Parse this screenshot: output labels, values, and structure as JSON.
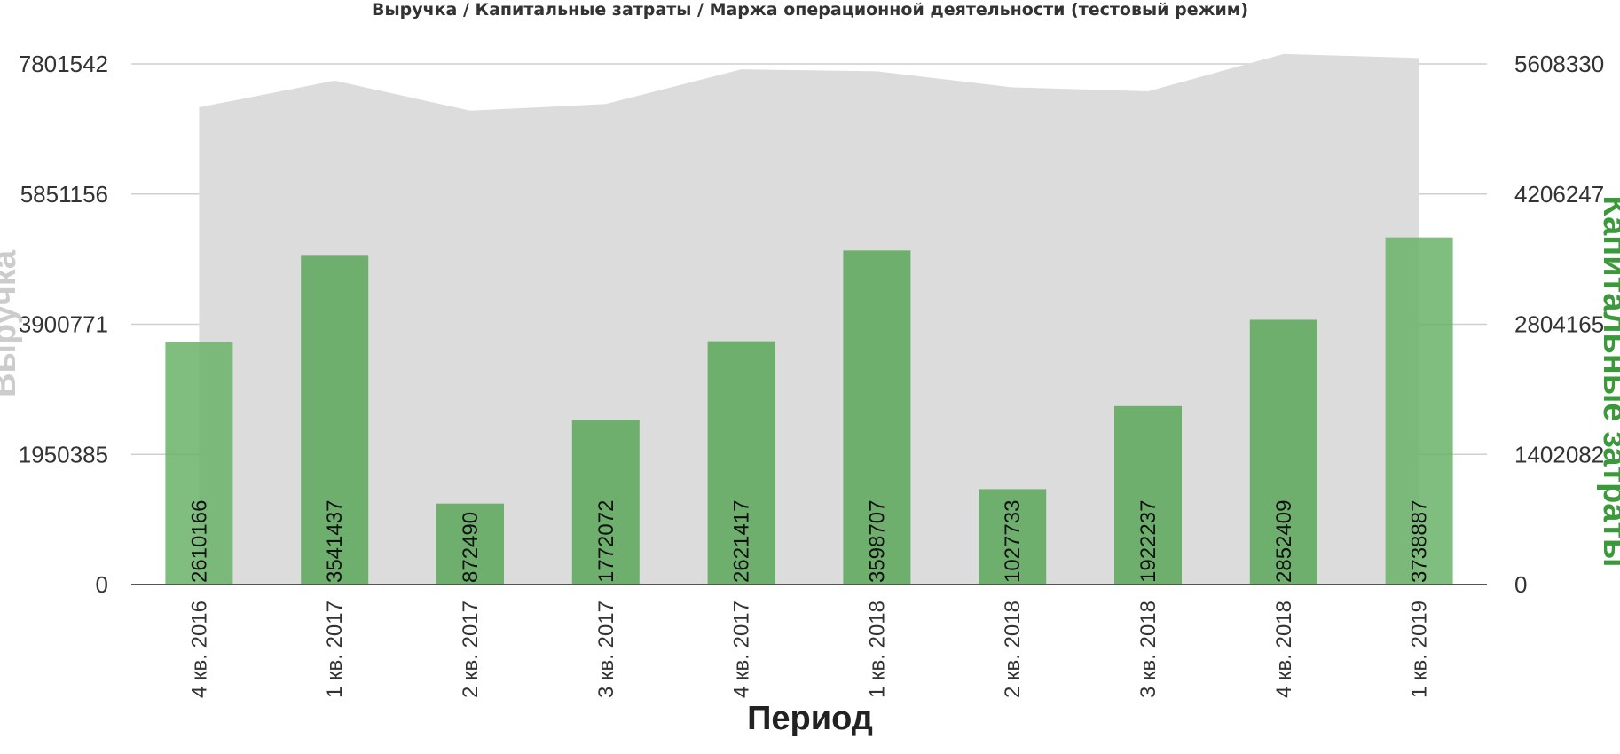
{
  "chart_data": {
    "type": "bar",
    "title": "Выручка / Капитальные затраты / Маржа операционной деятельности (тестовый режим)",
    "xlabel": "Период",
    "ylabel_left": "Выручка",
    "ylabel_right": "Капитальные затраты",
    "categories": [
      "4 кв. 2016",
      "1 кв. 2017",
      "2 кв. 2017",
      "3 кв. 2017",
      "4 кв. 2017",
      "1 кв. 2018",
      "2 кв. 2018",
      "3 кв. 2018",
      "4 кв. 2018",
      "1 кв. 2019"
    ],
    "left_ticks": [
      "0",
      "1950385",
      "3900771",
      "5851156",
      "7801542"
    ],
    "right_ticks": [
      "0",
      "1402082",
      "2804165",
      "4206247",
      "5608330"
    ],
    "ylim_left": [
      0,
      7801542
    ],
    "ylim_right": [
      0,
      5608330
    ],
    "series": [
      {
        "type": "area",
        "axis": "left",
        "color": "#dcdcdc",
        "values": [
          7150000,
          7550000,
          7100000,
          7200000,
          7720000,
          7690000,
          7450000,
          7390000,
          7950000,
          7890000
        ]
      },
      {
        "type": "bar",
        "axis": "right",
        "color": "#5fa95f",
        "values": [
          2610166,
          3541437,
          872490,
          1772072,
          2621417,
          3598707,
          1027733,
          1922237,
          2852409,
          3738887
        ],
        "labels": [
          "2610166",
          "3541437",
          "872490",
          "1772072",
          "2621417",
          "3598707",
          "1027733",
          "1922237",
          "2852409",
          "3738887"
        ]
      }
    ],
    "grid": true
  }
}
